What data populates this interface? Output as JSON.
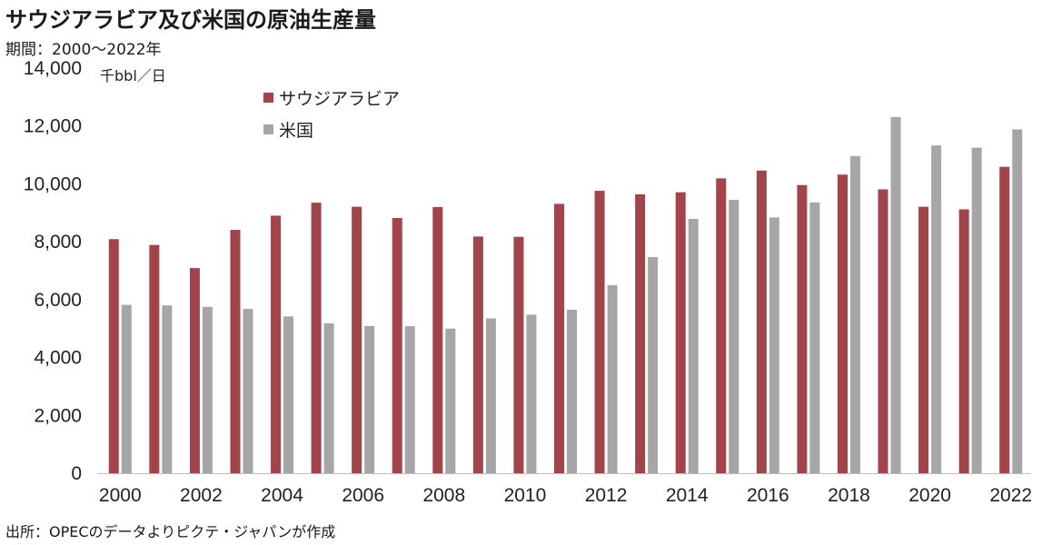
{
  "header": {
    "title": "サウジアラビア及び米国の原油生産量",
    "subtitle": "期間：2000〜2022年"
  },
  "footer": {
    "source": "出所：OPECのデータよりピクテ・ジャパンが作成"
  },
  "colors": {
    "saudi": "#a3434a",
    "us": "#a6a6a6",
    "axis": "#bfbfbf"
  },
  "chart_data": {
    "type": "bar",
    "title": "サウジアラビア及び米国の原油生産量",
    "ylabel": "千bbl／日",
    "xlabel": "",
    "ylim": [
      0,
      14000
    ],
    "yticks": [
      0,
      2000,
      4000,
      6000,
      8000,
      10000,
      12000,
      14000
    ],
    "ytick_labels": [
      "0",
      "2,000",
      "4,000",
      "6,000",
      "8,000",
      "10,000",
      "12,000",
      "14,000"
    ],
    "categories": [
      2000,
      2001,
      2002,
      2003,
      2004,
      2005,
      2006,
      2007,
      2008,
      2009,
      2010,
      2011,
      2012,
      2013,
      2014,
      2015,
      2016,
      2017,
      2018,
      2019,
      2020,
      2021,
      2022
    ],
    "xtick_labels": [
      "2000",
      "2002",
      "2004",
      "2006",
      "2008",
      "2010",
      "2012",
      "2014",
      "2016",
      "2018",
      "2020",
      "2022"
    ],
    "legend_position": "top-left",
    "grid": false,
    "series": [
      {
        "name": "サウジアラビア",
        "color": "#a3434a",
        "values": [
          8090,
          7890,
          7090,
          8410,
          8900,
          9350,
          9210,
          8820,
          9200,
          8180,
          8170,
          9310,
          9760,
          9640,
          9710,
          10190,
          10460,
          9960,
          10320,
          9810,
          9210,
          9120,
          10590
        ]
      },
      {
        "name": "米国",
        "color": "#a6a6a6",
        "values": [
          5820,
          5800,
          5750,
          5680,
          5420,
          5180,
          5090,
          5080,
          5000,
          5350,
          5480,
          5650,
          6500,
          7470,
          8790,
          9450,
          8840,
          9360,
          10960,
          12310,
          11330,
          11250,
          11880
        ]
      }
    ]
  }
}
